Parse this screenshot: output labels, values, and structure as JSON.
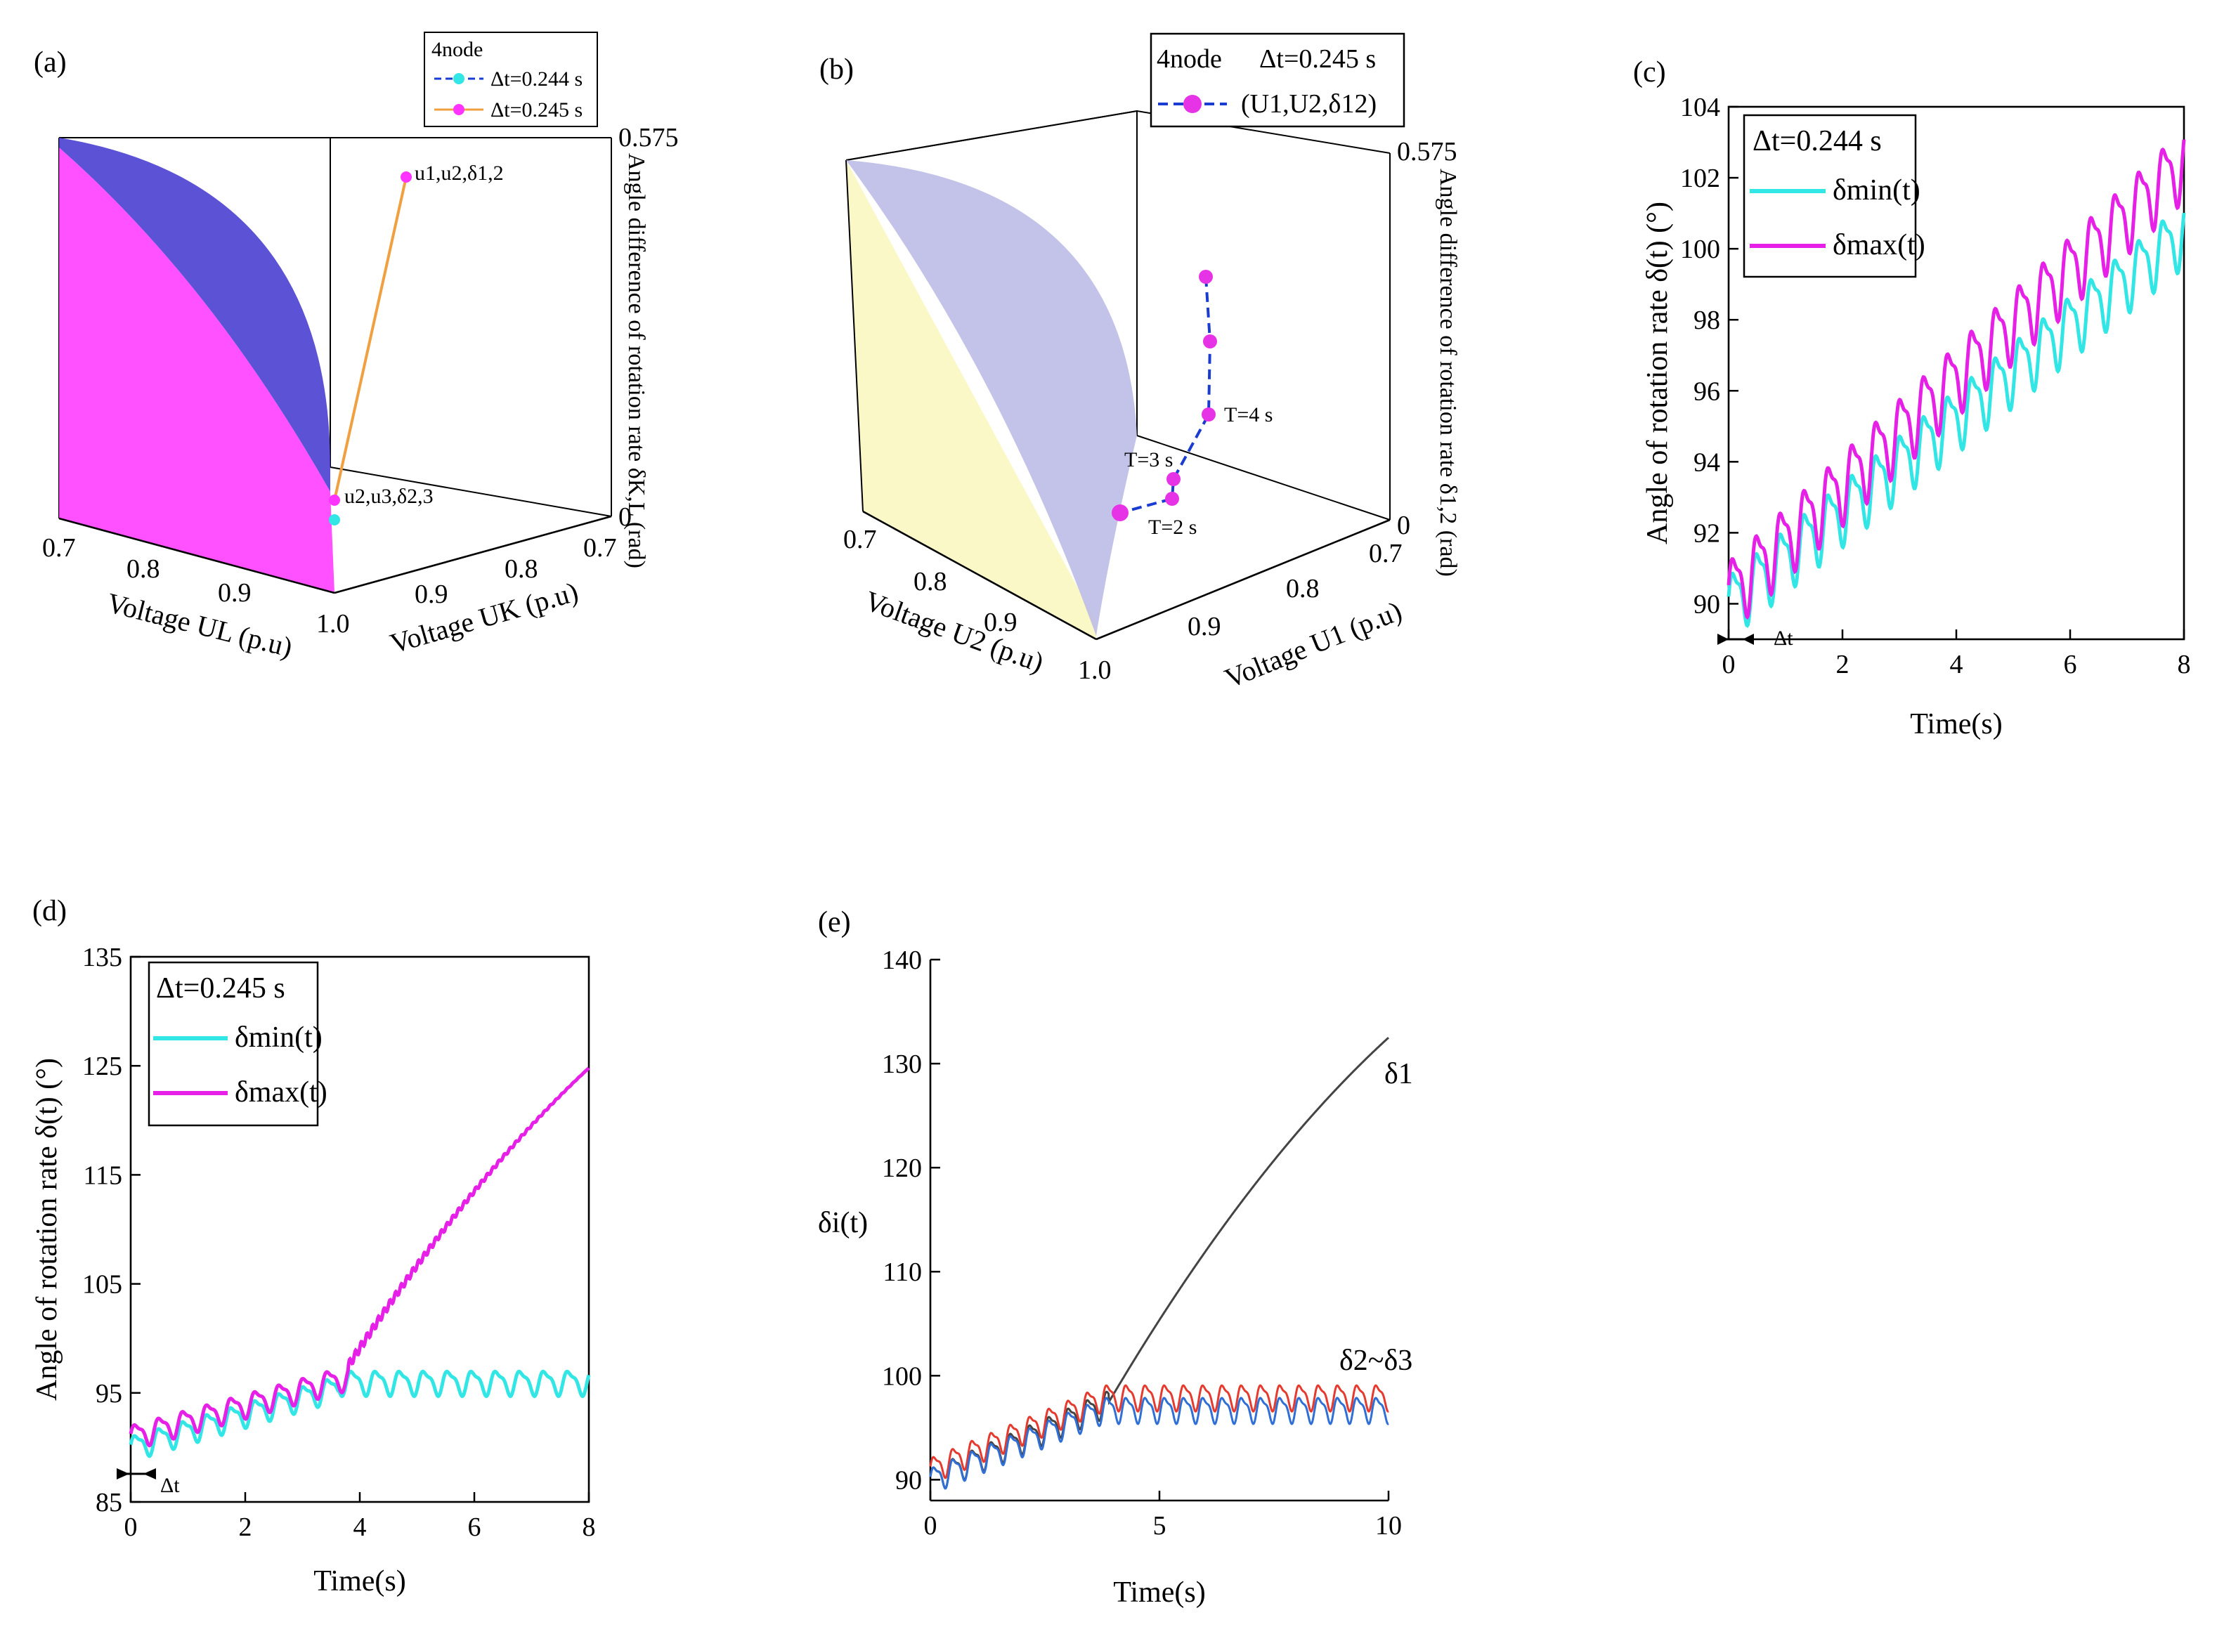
{
  "panels": {
    "a": {
      "letter": "(a)",
      "legend": {
        "title": "4node",
        "entry1": "Δt=0.244 s",
        "entry2": "Δt=0.245 s"
      },
      "annotations": {
        "top_point": "u1,u2,δ1,2",
        "bottom_point": "u2,u3,δ2,3"
      },
      "axis_left_label": "Voltage UL (p.u)",
      "axis_right_label": "Voltage UK (p.u)",
      "axis_vertical_label": "Angle difference of rotation rate δK,L (rad)",
      "left_ticks": [
        "0.7",
        "0.8",
        "0.9",
        "1.0"
      ],
      "right_ticks": [
        "0.9",
        "0.8",
        "0.7"
      ],
      "vertical_ticks": [
        "0.575",
        "0"
      ],
      "colors": {
        "surface_front": "#ff33ff",
        "surface_back": "#4a3fd0",
        "series1": "#33e6e6",
        "series2": "#ff33ff",
        "line2": "#f0a040",
        "line1": "#1a3cd0"
      }
    },
    "b": {
      "letter": "(b)",
      "legend": {
        "title": "4node",
        "dt": "Δt=0.245 s",
        "entry": "(U1,U2,δ12)"
      },
      "annotations": {
        "t4": "T=4 s",
        "t3": "T=3 s",
        "t2": "T=2 s"
      },
      "axis_left_label": "Voltage U2 (p.u)",
      "axis_right_label": "Voltage U1 (p.u)",
      "axis_vertical_label": "Angle difference of rotation rate δ1,2 (rad)",
      "left_ticks": [
        "0.7",
        "0.8",
        "0.9",
        "1.0"
      ],
      "right_ticks": [
        "0.9",
        "0.8",
        "0.7"
      ],
      "vertical_ticks": [
        "0.575",
        "0"
      ],
      "colors": {
        "surface": "#b8b8e6",
        "back_wall": "#fbf7c2",
        "points": "#e633e6",
        "line": "#1a3cd0"
      }
    },
    "c": {
      "letter": "(c)",
      "dt_marker": "Δt"
    },
    "d": {
      "letter": "(d)",
      "dt_marker": "Δt"
    },
    "e": {
      "letter": "(e)"
    }
  },
  "chart_data": [
    {
      "panel": "c",
      "type": "line",
      "xlabel": "Time(s)",
      "ylabel": "Angle of rotation rate δ(t) (°)",
      "xlim": [
        0,
        8
      ],
      "ylim": [
        89,
        104
      ],
      "xticks": [
        0,
        2,
        4,
        6,
        8
      ],
      "yticks": [
        90,
        92,
        94,
        96,
        98,
        100,
        102,
        104
      ],
      "legend_title": "Δt=0.244 s",
      "legend_position": "top-left",
      "series": [
        {
          "name": "δmin(t)",
          "color": "#33e6e6",
          "start": 90,
          "end": 100.5,
          "amp": 0.8,
          "period": 0.42
        },
        {
          "name": "δmax(t)",
          "color": "#e620e6",
          "start": 90.3,
          "end": 102.5,
          "amp": 0.9,
          "period": 0.42
        }
      ]
    },
    {
      "panel": "d",
      "type": "line",
      "xlabel": "Time(s)",
      "ylabel": "Angle of rotation rate δ(t) (°)",
      "xlim": [
        0,
        8
      ],
      "ylim": [
        85,
        135
      ],
      "xticks": [
        0,
        2,
        4,
        6,
        8
      ],
      "yticks": [
        85,
        95,
        105,
        115,
        125,
        135
      ],
      "legend_title": "Δt=0.245 s",
      "legend_position": "top-left",
      "series": [
        {
          "name": "δmin(t)",
          "color": "#33e6e6",
          "start": 90,
          "plateau": 96.5,
          "break_time": 3.6,
          "amp": 1.0,
          "period": 0.42
        },
        {
          "name": "δmax(t)",
          "color": "#e620e6",
          "start": 91,
          "break_time": 3.8,
          "break_value": 97.5,
          "end": 124.8,
          "amp": 1.0,
          "period": 0.42
        }
      ]
    },
    {
      "panel": "e",
      "type": "line",
      "xlabel": "Time(s)",
      "ylabel": "δi(t)",
      "xlim": [
        0,
        10
      ],
      "ylim": [
        88,
        140
      ],
      "xticks": [
        0,
        5,
        10
      ],
      "yticks": [
        90,
        100,
        110,
        120,
        130,
        140
      ],
      "series": [
        {
          "name": "δ1",
          "color": "#444444",
          "start": 90,
          "break_time": 3.9,
          "break_value": 97.5,
          "end": 132.5
        },
        {
          "name": "δ2~δ3",
          "color": "#e63a2e",
          "start": 91,
          "plateau": 98,
          "amp": 1.1,
          "period": 0.42
        },
        {
          "name": "δ2~δ3",
          "color": "#2f6fd6",
          "start": 90,
          "plateau": 96.8,
          "amp": 1.1,
          "period": 0.42
        }
      ]
    }
  ]
}
